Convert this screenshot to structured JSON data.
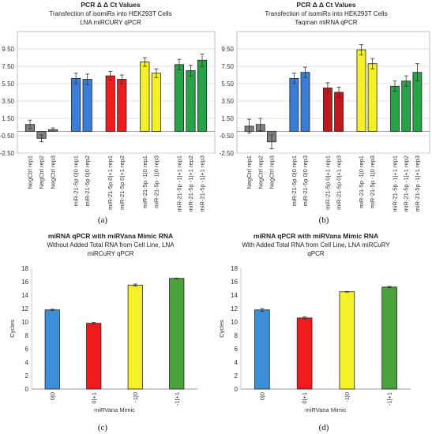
{
  "chart_data": [
    {
      "panel": "(a)",
      "type": "bar",
      "title": "PCR Δ Δ Ct Values",
      "subtitle_lines": [
        "Transfection of isomiRs into HEK293T Cells",
        "LNA miRCURY qPCR"
      ],
      "xlabel": "",
      "ylabel": "",
      "ylim": [
        -2.5,
        11.5
      ],
      "yticks": [
        "9.50",
        "7.50",
        "5.50",
        "3.50",
        "1.50",
        "-0.50",
        "-2.50"
      ],
      "ytick_values": [
        9.5,
        7.5,
        5.5,
        3.5,
        1.5,
        -0.5,
        -2.5
      ],
      "grid": true,
      "categories": [
        "NegCtrl rep1",
        "NegCtrl rep2",
        "NegCtrl rep3",
        "miR-21-5p 0|0 rep1",
        "miR-21-5p 0|0 rep2",
        "miR-21-5p 0|+1 rep1",
        "miR-21-5p 0|+1 rep2",
        "miR-21-5p -1|0 rep1",
        "miR-21-5p -1|0 rep3",
        "miR-21-5p -1|+1 rep1",
        "miR-21-5p -1|+1 rep2",
        "miR-21-5p -1|+1 rep3"
      ],
      "groups": [
        3,
        2,
        2,
        2,
        3
      ],
      "values": [
        0.8,
        -0.8,
        0.2,
        6.1,
        6.0,
        6.4,
        6.0,
        8.0,
        6.7,
        7.7,
        7.0,
        8.2
      ],
      "errors": [
        0.5,
        0.4,
        0.2,
        0.6,
        0.6,
        0.5,
        0.5,
        0.5,
        0.5,
        0.6,
        0.6,
        0.7
      ],
      "colors": [
        "#808080",
        "#808080",
        "#808080",
        "#3a7dd8",
        "#3a7dd8",
        "#ee1c1c",
        "#ee1c1c",
        "#f5f02a",
        "#f5f02a",
        "#27a348",
        "#27a348",
        "#27a348"
      ]
    },
    {
      "panel": "(b)",
      "type": "bar",
      "title": "PCR Δ Δ Ct Values",
      "subtitle_lines": [
        "Transfection of isomiRs into HEK293T Cells",
        "Taqman miRNA qPCR"
      ],
      "xlabel": "",
      "ylabel": "",
      "ylim": [
        -2.5,
        11.5
      ],
      "yticks": [
        "9.50",
        "7.50",
        "5.50",
        "3.50",
        "1.50",
        "-0.50",
        "-2.50"
      ],
      "ytick_values": [
        9.5,
        7.5,
        5.5,
        3.5,
        1.5,
        -0.5,
        -2.5
      ],
      "grid": true,
      "categories": [
        "NegCtrl rep1",
        "NegCtrl rep2",
        "NegCtrl rep3",
        "miR-21-5p 0|0 rep1",
        "miR-21-5p 0|0 rep3",
        "miR-21-5p 0|+1 rep1",
        "miR-21-5p 0|+1 rep3",
        "miR-21-5p -1|0 rep1",
        "miR-21-5p -1|0 rep3",
        "miR-21-5p -1|+1 rep1",
        "miR-21-5p -1|+1 rep2",
        "miR-21-5p -1|+1 rep3"
      ],
      "groups": [
        3,
        2,
        2,
        2,
        3
      ],
      "values": [
        0.6,
        0.8,
        -1.2,
        6.1,
        6.8,
        5.0,
        4.5,
        9.4,
        7.8,
        5.2,
        5.8,
        6.8
      ],
      "errors": [
        0.8,
        0.7,
        0.8,
        0.6,
        0.6,
        0.6,
        0.6,
        0.6,
        0.6,
        0.6,
        0.6,
        1.0
      ],
      "colors": [
        "#808080",
        "#808080",
        "#808080",
        "#3a7dd8",
        "#3a7dd8",
        "#c0191c",
        "#c0191c",
        "#f5f02a",
        "#f5f02a",
        "#27a348",
        "#27a348",
        "#27a348"
      ]
    },
    {
      "panel": "(c)",
      "type": "bar",
      "title": "miRNA qPCR with miRVana Mimic RNA",
      "subtitle_lines": [
        "Without Added Total RNA from Cell Line, LNA",
        "miRCuRY qPCR"
      ],
      "xlabel": "miRVana Mimic",
      "ylabel": "Cycles",
      "ylim": [
        0,
        18
      ],
      "yticks": [
        "0",
        "2",
        "4",
        "6",
        "8",
        "10",
        "12",
        "14",
        "16",
        "18"
      ],
      "ytick_values": [
        0,
        2,
        4,
        6,
        8,
        10,
        12,
        14,
        16,
        18
      ],
      "grid": false,
      "categories": [
        "0|0",
        "0|+1",
        "-1|0",
        "-1|+1"
      ],
      "values": [
        11.8,
        9.8,
        15.5,
        16.5
      ],
      "errors": [
        0.1,
        0.15,
        0.15,
        0.05
      ],
      "colors": [
        "#3a8fd8",
        "#ee1c1c",
        "#f5f02a",
        "#4ba23c"
      ]
    },
    {
      "panel": "(d)",
      "type": "bar",
      "title": "miRNA qPCR with miRVana Mimic RNA",
      "subtitle_lines": [
        "With Added Total RNA from Cell Line, LNA miRCuRY",
        "qPCR"
      ],
      "xlabel": "miRVana Mimic",
      "ylabel": "Cycles",
      "ylim": [
        0,
        18
      ],
      "yticks": [
        "0",
        "2",
        "4",
        "6",
        "8",
        "10",
        "12",
        "14",
        "16",
        "18"
      ],
      "ytick_values": [
        0,
        2,
        4,
        6,
        8,
        10,
        12,
        14,
        16,
        18
      ],
      "grid": false,
      "categories": [
        "0|0",
        "0|+1",
        "-1|0",
        "-1|+1"
      ],
      "values": [
        11.8,
        10.6,
        14.5,
        15.2
      ],
      "errors": [
        0.2,
        0.15,
        0.05,
        0.1
      ],
      "colors": [
        "#3a8fd8",
        "#ee1c1c",
        "#f5f02a",
        "#4ba23c"
      ]
    }
  ]
}
